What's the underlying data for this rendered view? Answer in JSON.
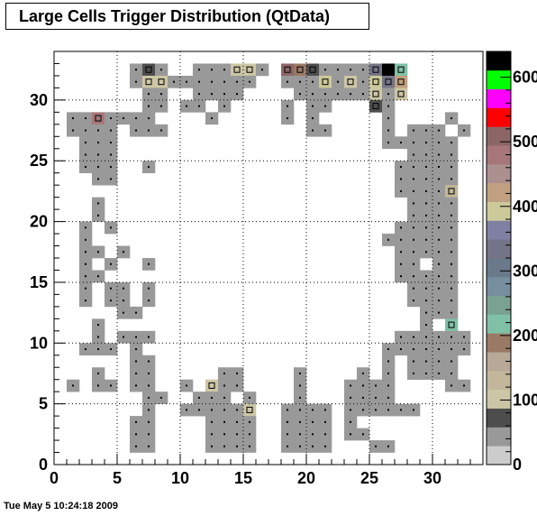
{
  "title": "Large Cells Trigger Distribution (QtData)",
  "timestamp": "Tue May  5 10:24:18 2009",
  "chart_data": {
    "type": "heatmap",
    "title": "Large Cells Trigger Distribution (QtData)",
    "xlim": [
      0,
      34
    ],
    "ylim": [
      0,
      34
    ],
    "x_ticks": [
      0,
      5,
      10,
      15,
      20,
      25,
      30
    ],
    "y_ticks": [
      0,
      5,
      10,
      15,
      20,
      25,
      30
    ],
    "grid": true,
    "z_range": [
      0,
      640
    ],
    "palette_tick_labels": [
      "0",
      "100",
      "200",
      "300",
      "400",
      "500",
      "600"
    ],
    "palette_tick_values": [
      0,
      100,
      200,
      300,
      400,
      500,
      600
    ],
    "palette_colors": [
      "#cccccc",
      "#999999",
      "#4d4d4d",
      "#ccc6a6",
      "#c2b79a",
      "#b7a897",
      "#9a7a65",
      "#80c0a6",
      "#7aa292",
      "#768e9e",
      "#6a7a8a",
      "#747488",
      "#8080a4",
      "#ccc99a",
      "#c0a080",
      "#ac8f8f",
      "#a6767a",
      "#8c6666",
      "#ff0000",
      "#ff00ff",
      "#00ff00",
      "#000000"
    ],
    "cells": [
      [
        6,
        32,
        1
      ],
      [
        7,
        32,
        2
      ],
      [
        8,
        32,
        1
      ],
      [
        11,
        32,
        1
      ],
      [
        12,
        32,
        1
      ],
      [
        13,
        32,
        1
      ],
      [
        14,
        32,
        3
      ],
      [
        15,
        32,
        3
      ],
      [
        16,
        32,
        1
      ],
      [
        18,
        32,
        17
      ],
      [
        19,
        32,
        6
      ],
      [
        20,
        32,
        2
      ],
      [
        21,
        32,
        1
      ],
      [
        22,
        32,
        1
      ],
      [
        23,
        32,
        1
      ],
      [
        24,
        32,
        1
      ],
      [
        25,
        32,
        11
      ],
      [
        26,
        32,
        21
      ],
      [
        27,
        32,
        7
      ],
      [
        6,
        31,
        1
      ],
      [
        7,
        31,
        3
      ],
      [
        8,
        31,
        3
      ],
      [
        9,
        31,
        1
      ],
      [
        10,
        31,
        1
      ],
      [
        11,
        31,
        1
      ],
      [
        12,
        31,
        1
      ],
      [
        13,
        31,
        1
      ],
      [
        14,
        31,
        1
      ],
      [
        15,
        31,
        1
      ],
      [
        18,
        31,
        1
      ],
      [
        19,
        31,
        1
      ],
      [
        20,
        31,
        1
      ],
      [
        21,
        31,
        13
      ],
      [
        22,
        31,
        1
      ],
      [
        23,
        31,
        3
      ],
      [
        24,
        31,
        1
      ],
      [
        25,
        31,
        13
      ],
      [
        26,
        31,
        11
      ],
      [
        27,
        31,
        14
      ],
      [
        7,
        30,
        1
      ],
      [
        8,
        30,
        1
      ],
      [
        11,
        30,
        1
      ],
      [
        12,
        30,
        1
      ],
      [
        13,
        30,
        1
      ],
      [
        14,
        30,
        1
      ],
      [
        19,
        30,
        1
      ],
      [
        20,
        30,
        1
      ],
      [
        21,
        30,
        1
      ],
      [
        22,
        30,
        1
      ],
      [
        23,
        30,
        1
      ],
      [
        24,
        30,
        1
      ],
      [
        25,
        30,
        3
      ],
      [
        26,
        30,
        1
      ],
      [
        27,
        30,
        3
      ],
      [
        7,
        29,
        1
      ],
      [
        8,
        29,
        1
      ],
      [
        10,
        29,
        1
      ],
      [
        11,
        29,
        1
      ],
      [
        13,
        29,
        1
      ],
      [
        18,
        29,
        1
      ],
      [
        20,
        29,
        1
      ],
      [
        21,
        29,
        1
      ],
      [
        25,
        29,
        2
      ],
      [
        26,
        29,
        1
      ],
      [
        1,
        28,
        1
      ],
      [
        2,
        28,
        1
      ],
      [
        3,
        28,
        16
      ],
      [
        4,
        28,
        1
      ],
      [
        5,
        28,
        1
      ],
      [
        6,
        28,
        1
      ],
      [
        7,
        28,
        1
      ],
      [
        12,
        28,
        1
      ],
      [
        18,
        28,
        1
      ],
      [
        20,
        28,
        1
      ],
      [
        26,
        28,
        1
      ],
      [
        31,
        28,
        1
      ],
      [
        1,
        27,
        1
      ],
      [
        2,
        27,
        1
      ],
      [
        3,
        27,
        1
      ],
      [
        4,
        27,
        1
      ],
      [
        6,
        27,
        1
      ],
      [
        7,
        27,
        1
      ],
      [
        8,
        27,
        1
      ],
      [
        20,
        27,
        1
      ],
      [
        21,
        27,
        1
      ],
      [
        26,
        27,
        1
      ],
      [
        28,
        27,
        1
      ],
      [
        29,
        27,
        1
      ],
      [
        30,
        27,
        1
      ],
      [
        32,
        27,
        1
      ],
      [
        2,
        26,
        1
      ],
      [
        3,
        26,
        1
      ],
      [
        4,
        26,
        1
      ],
      [
        26,
        26,
        1
      ],
      [
        27,
        26,
        1
      ],
      [
        28,
        26,
        1
      ],
      [
        29,
        26,
        1
      ],
      [
        30,
        26,
        1
      ],
      [
        31,
        26,
        1
      ],
      [
        2,
        25,
        1
      ],
      [
        3,
        25,
        1
      ],
      [
        4,
        25,
        1
      ],
      [
        28,
        25,
        1
      ],
      [
        29,
        25,
        1
      ],
      [
        30,
        25,
        1
      ],
      [
        31,
        25,
        1
      ],
      [
        2,
        24,
        1
      ],
      [
        3,
        24,
        1
      ],
      [
        4,
        24,
        1
      ],
      [
        7,
        24,
        1
      ],
      [
        27,
        24,
        1
      ],
      [
        28,
        24,
        1
      ],
      [
        29,
        24,
        1
      ],
      [
        30,
        24,
        1
      ],
      [
        31,
        24,
        1
      ],
      [
        3,
        23,
        1
      ],
      [
        4,
        23,
        1
      ],
      [
        27,
        23,
        1
      ],
      [
        28,
        23,
        1
      ],
      [
        29,
        23,
        1
      ],
      [
        30,
        23,
        1
      ],
      [
        31,
        23,
        1
      ],
      [
        27,
        22,
        1
      ],
      [
        28,
        22,
        1
      ],
      [
        29,
        22,
        1
      ],
      [
        30,
        22,
        1
      ],
      [
        31,
        22,
        4
      ],
      [
        3,
        21,
        1
      ],
      [
        28,
        21,
        1
      ],
      [
        29,
        21,
        1
      ],
      [
        30,
        21,
        1
      ],
      [
        31,
        21,
        1
      ],
      [
        3,
        20,
        1
      ],
      [
        28,
        20,
        1
      ],
      [
        29,
        20,
        1
      ],
      [
        30,
        20,
        1
      ],
      [
        31,
        20,
        1
      ],
      [
        2,
        19,
        1
      ],
      [
        4,
        19,
        1
      ],
      [
        27,
        19,
        1
      ],
      [
        28,
        19,
        1
      ],
      [
        29,
        19,
        1
      ],
      [
        30,
        19,
        1
      ],
      [
        31,
        19,
        1
      ],
      [
        2,
        18,
        1
      ],
      [
        26,
        18,
        1
      ],
      [
        27,
        18,
        1
      ],
      [
        28,
        18,
        1
      ],
      [
        29,
        18,
        1
      ],
      [
        30,
        18,
        1
      ],
      [
        31,
        18,
        1
      ],
      [
        2,
        17,
        1
      ],
      [
        3,
        17,
        1
      ],
      [
        5,
        17,
        1
      ],
      [
        27,
        17,
        1
      ],
      [
        28,
        17,
        1
      ],
      [
        29,
        17,
        1
      ],
      [
        30,
        17,
        1
      ],
      [
        31,
        17,
        1
      ],
      [
        2,
        16,
        1
      ],
      [
        4,
        16,
        1
      ],
      [
        7,
        16,
        1
      ],
      [
        27,
        16,
        1
      ],
      [
        28,
        16,
        1
      ],
      [
        30,
        16,
        1
      ],
      [
        31,
        16,
        1
      ],
      [
        2,
        15,
        1
      ],
      [
        3,
        15,
        1
      ],
      [
        27,
        15,
        1
      ],
      [
        28,
        15,
        1
      ],
      [
        29,
        15,
        1
      ],
      [
        30,
        15,
        1
      ],
      [
        31,
        15,
        1
      ],
      [
        2,
        14,
        1
      ],
      [
        4,
        14,
        1
      ],
      [
        5,
        14,
        1
      ],
      [
        7,
        14,
        1
      ],
      [
        28,
        14,
        1
      ],
      [
        29,
        14,
        1
      ],
      [
        30,
        14,
        1
      ],
      [
        31,
        14,
        1
      ],
      [
        2,
        13,
        1
      ],
      [
        4,
        13,
        1
      ],
      [
        5,
        13,
        1
      ],
      [
        7,
        13,
        1
      ],
      [
        28,
        13,
        1
      ],
      [
        29,
        13,
        1
      ],
      [
        30,
        13,
        1
      ],
      [
        31,
        13,
        1
      ],
      [
        5,
        12,
        1
      ],
      [
        6,
        12,
        1
      ],
      [
        29,
        12,
        1
      ],
      [
        30,
        12,
        1
      ],
      [
        31,
        12,
        1
      ],
      [
        3,
        11,
        1
      ],
      [
        29,
        11,
        1
      ],
      [
        31,
        11,
        7
      ],
      [
        3,
        10,
        1
      ],
      [
        5,
        10,
        1
      ],
      [
        6,
        10,
        1
      ],
      [
        7,
        10,
        1
      ],
      [
        27,
        10,
        1
      ],
      [
        28,
        10,
        1
      ],
      [
        29,
        10,
        1
      ],
      [
        30,
        10,
        1
      ],
      [
        31,
        10,
        1
      ],
      [
        32,
        10,
        1
      ],
      [
        2,
        9,
        1
      ],
      [
        3,
        9,
        1
      ],
      [
        4,
        9,
        1
      ],
      [
        6,
        9,
        1
      ],
      [
        26,
        9,
        1
      ],
      [
        27,
        9,
        1
      ],
      [
        28,
        9,
        1
      ],
      [
        29,
        9,
        1
      ],
      [
        30,
        9,
        1
      ],
      [
        31,
        9,
        1
      ],
      [
        32,
        9,
        1
      ],
      [
        6,
        8,
        1
      ],
      [
        7,
        8,
        1
      ],
      [
        26,
        8,
        1
      ],
      [
        28,
        8,
        1
      ],
      [
        29,
        8,
        1
      ],
      [
        30,
        8,
        1
      ],
      [
        31,
        8,
        1
      ],
      [
        3,
        7,
        1
      ],
      [
        6,
        7,
        1
      ],
      [
        7,
        7,
        1
      ],
      [
        13,
        7,
        1
      ],
      [
        14,
        7,
        1
      ],
      [
        19,
        7,
        1
      ],
      [
        24,
        7,
        1
      ],
      [
        26,
        7,
        1
      ],
      [
        28,
        7,
        1
      ],
      [
        29,
        7,
        1
      ],
      [
        30,
        7,
        1
      ],
      [
        31,
        7,
        1
      ],
      [
        1,
        6,
        1
      ],
      [
        3,
        6,
        1
      ],
      [
        4,
        6,
        1
      ],
      [
        6,
        6,
        1
      ],
      [
        7,
        6,
        1
      ],
      [
        10,
        6,
        1
      ],
      [
        12,
        6,
        3
      ],
      [
        13,
        6,
        1
      ],
      [
        14,
        6,
        1
      ],
      [
        19,
        6,
        1
      ],
      [
        23,
        6,
        1
      ],
      [
        24,
        6,
        1
      ],
      [
        25,
        6,
        1
      ],
      [
        26,
        6,
        1
      ],
      [
        31,
        6,
        1
      ],
      [
        32,
        6,
        1
      ],
      [
        7,
        5,
        1
      ],
      [
        8,
        5,
        1
      ],
      [
        11,
        5,
        1
      ],
      [
        12,
        5,
        1
      ],
      [
        13,
        5,
        1
      ],
      [
        15,
        5,
        1
      ],
      [
        19,
        5,
        1
      ],
      [
        23,
        5,
        1
      ],
      [
        24,
        5,
        1
      ],
      [
        25,
        5,
        1
      ],
      [
        26,
        5,
        1
      ],
      [
        7,
        4,
        1
      ],
      [
        10,
        4,
        1
      ],
      [
        11,
        4,
        1
      ],
      [
        12,
        4,
        1
      ],
      [
        13,
        4,
        1
      ],
      [
        14,
        4,
        1
      ],
      [
        15,
        4,
        3
      ],
      [
        18,
        4,
        1
      ],
      [
        19,
        4,
        1
      ],
      [
        20,
        4,
        1
      ],
      [
        21,
        4,
        1
      ],
      [
        23,
        4,
        1
      ],
      [
        24,
        4,
        1
      ],
      [
        25,
        4,
        1
      ],
      [
        26,
        4,
        1
      ],
      [
        27,
        4,
        1
      ],
      [
        28,
        4,
        1
      ],
      [
        6,
        3,
        1
      ],
      [
        7,
        3,
        1
      ],
      [
        12,
        3,
        1
      ],
      [
        13,
        3,
        1
      ],
      [
        14,
        3,
        1
      ],
      [
        15,
        3,
        1
      ],
      [
        18,
        3,
        1
      ],
      [
        19,
        3,
        1
      ],
      [
        20,
        3,
        1
      ],
      [
        21,
        3,
        1
      ],
      [
        23,
        3,
        1
      ],
      [
        6,
        2,
        1
      ],
      [
        7,
        2,
        1
      ],
      [
        12,
        2,
        1
      ],
      [
        13,
        2,
        1
      ],
      [
        14,
        2,
        1
      ],
      [
        15,
        2,
        1
      ],
      [
        18,
        2,
        1
      ],
      [
        19,
        2,
        1
      ],
      [
        20,
        2,
        1
      ],
      [
        21,
        2,
        1
      ],
      [
        23,
        2,
        1
      ],
      [
        24,
        2,
        1
      ],
      [
        6,
        1,
        1
      ],
      [
        7,
        1,
        1
      ],
      [
        12,
        1,
        1
      ],
      [
        13,
        1,
        1
      ],
      [
        14,
        1,
        1
      ],
      [
        15,
        1,
        1
      ],
      [
        18,
        1,
        1
      ],
      [
        19,
        1,
        1
      ],
      [
        20,
        1,
        1
      ],
      [
        21,
        1,
        1
      ],
      [
        25,
        1,
        1
      ],
      [
        26,
        1,
        1
      ]
    ]
  }
}
